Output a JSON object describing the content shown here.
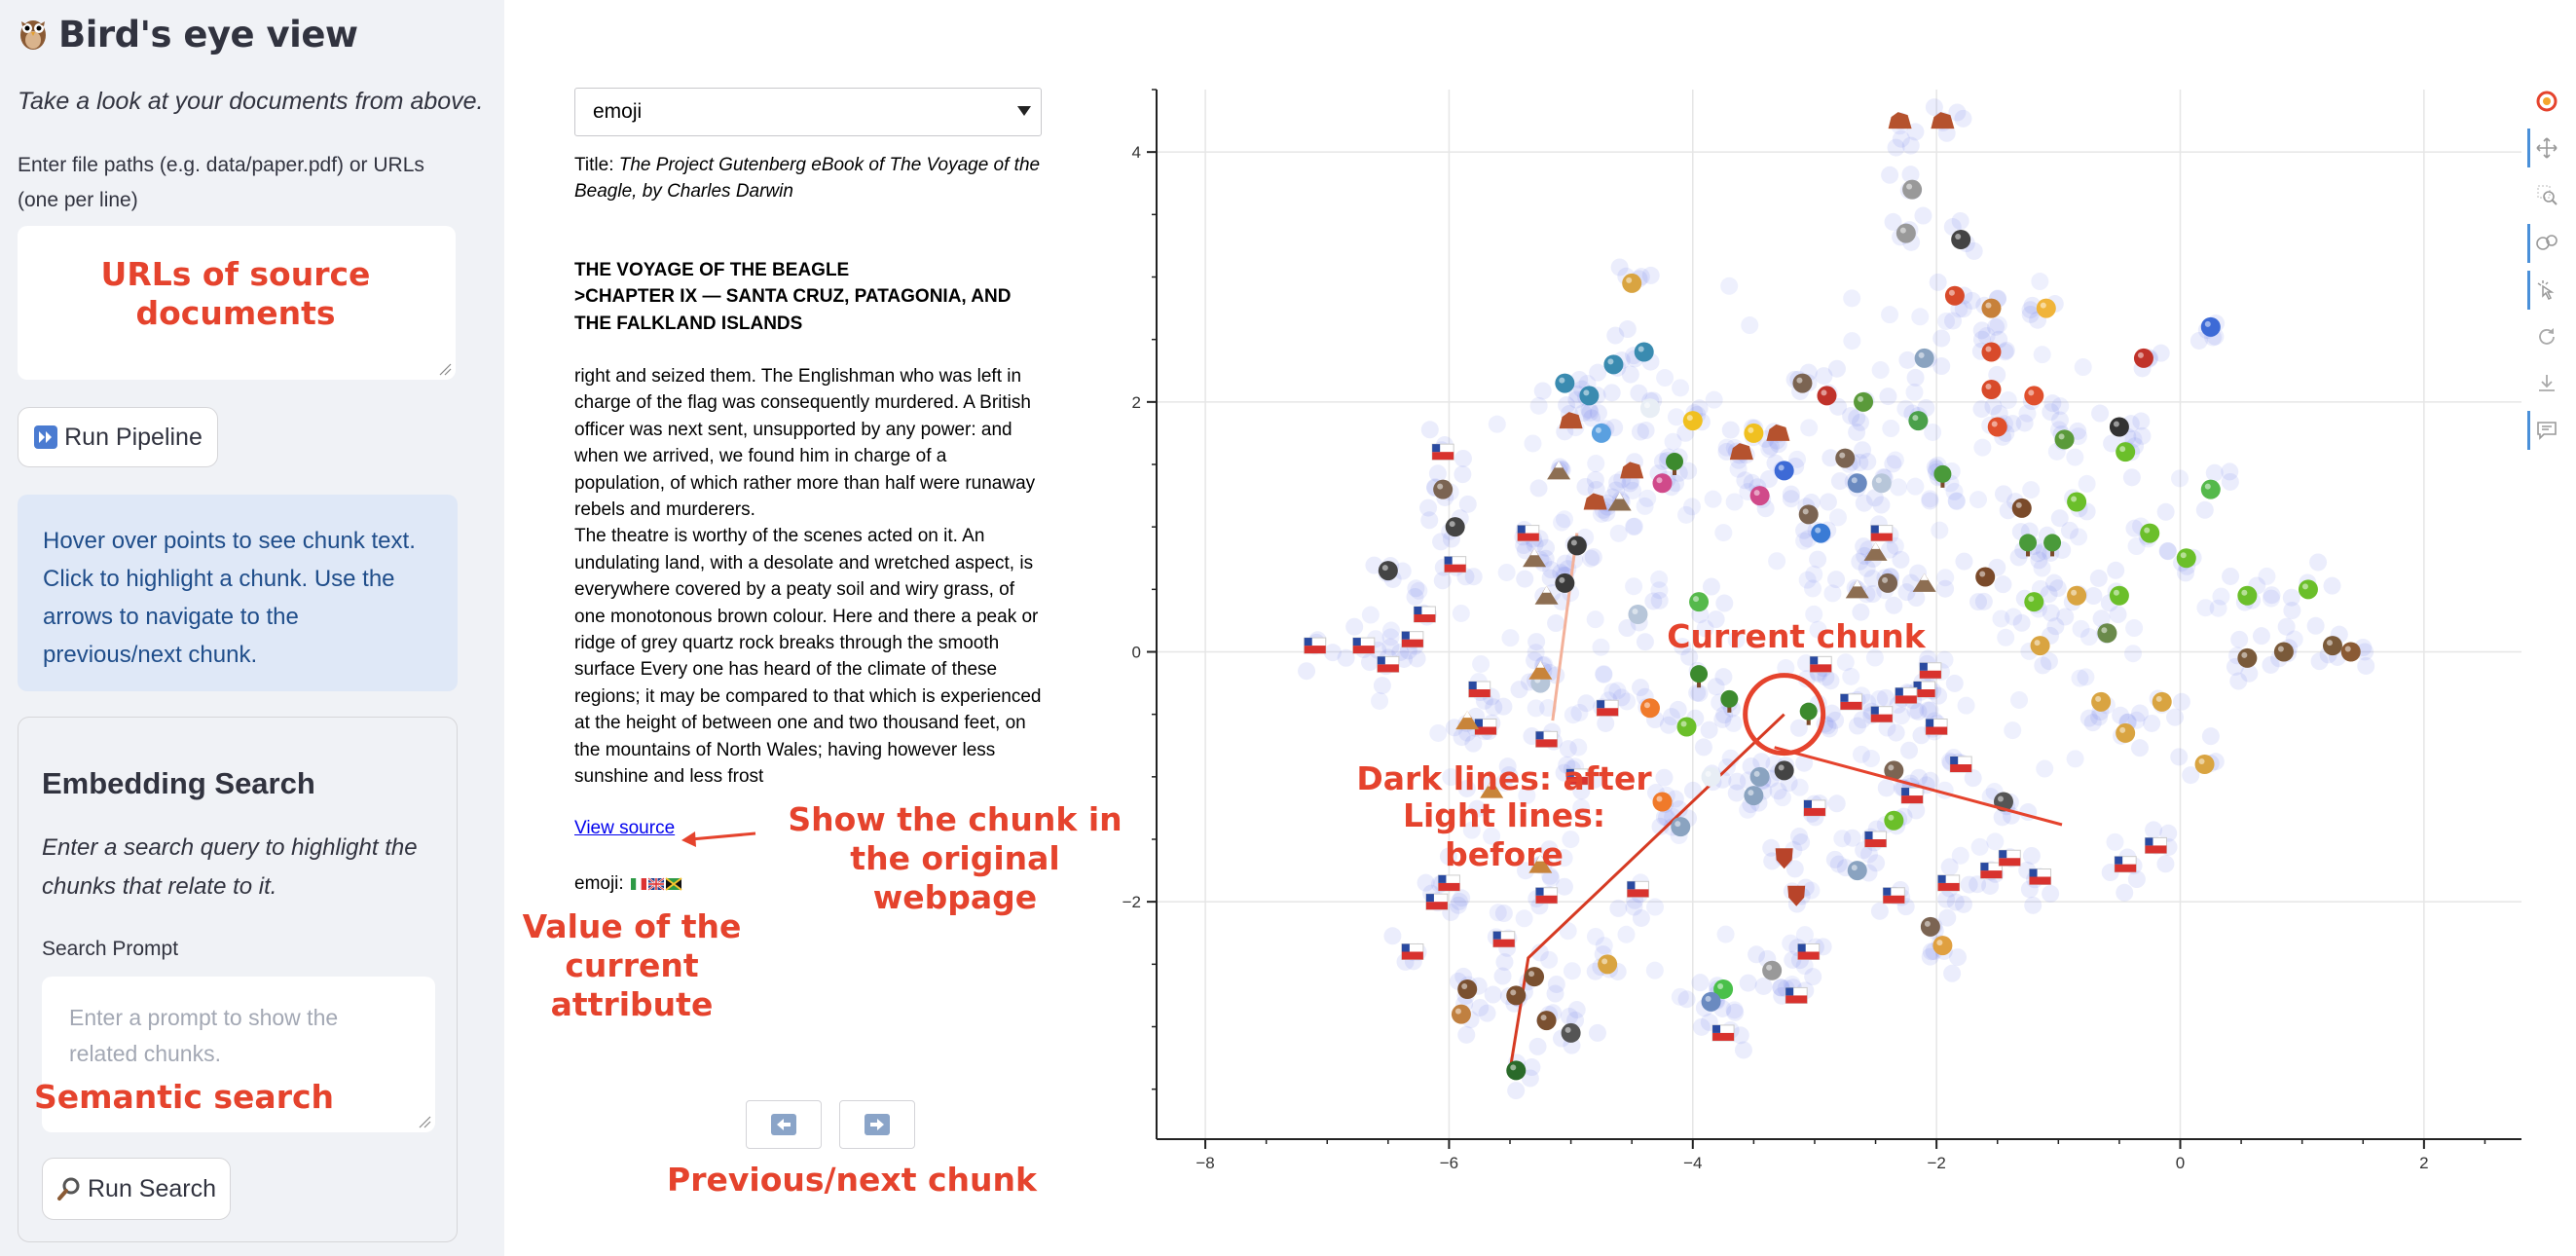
{
  "sidebar": {
    "title": "Bird's eye view",
    "tagline": "Take a look at your documents from above.",
    "file_paths_label": "Enter file paths (e.g. data/paper.pdf) or URLs (one per line)",
    "file_paths_value": "",
    "run_pipeline_label": "Run Pipeline",
    "info_text": "Hover over points to see chunk text. Click to highlight a chunk. Use the arrows to navigate to the previous/next chunk.",
    "embedding_search": {
      "heading": "Embedding Search",
      "description": "Enter a search query to highlight the chunks that relate to it.",
      "prompt_label": "Search Prompt",
      "prompt_placeholder": "Enter a prompt to show the related chunks.",
      "run_search_label": "Run Search"
    }
  },
  "chunk_panel": {
    "attribute_select": "emoji",
    "title_label": "Title:",
    "title_value": "The Project Gutenberg eBook of The Voyage of the Beagle, by Charles Darwin",
    "heading_lines": [
      "THE VOYAGE OF THE BEAGLE",
      ">CHAPTER IX — SANTA CRUZ, PATAGONIA, AND THE FALKLAND ISLANDS"
    ],
    "body_paragraphs": [
      "right and seized them. The Englishman who was left in charge of the flag was consequently murdered. A British officer was next sent, unsupported by any power: and when we arrived, we found him in charge of a population, of which rather more than half were runaway rebels and murderers.",
      "The theatre is worthy of the scenes acted on it. An undulating land, with a desolate and wretched aspect, is everywhere covered by a peaty soil and wiry grass, of one monotonous brown colour. Here and there a peak or ridge of grey quartz rock breaks through the smooth surface Every one has heard of the climate of these regions; it may be compared to that which is experienced at the height of between one and two thousand feet, on the mountains of North Wales; having however less sunshine and less frost"
    ],
    "view_source_label": "View source",
    "emoji_label": "emoji:"
  },
  "annotations": {
    "urls": "URLs of source documents",
    "show_chunk": "Show the chunk in the original webpage",
    "value_attr": "Value of the current attribute",
    "semantic_search": "Semantic search",
    "prev_next": "Previous/next chunk",
    "current_chunk": "Current chunk",
    "dark_lines": "Dark lines: after",
    "light_lines": "Light lines: before"
  },
  "colors": {
    "accent": "#e5432d",
    "point": "#5b6ee8",
    "info_bg": "#dfe8f7",
    "sidebar_bg": "#f0f2f6"
  },
  "chart_data": {
    "type": "scatter",
    "xlim": [
      -8.4,
      2.8
    ],
    "ylim": [
      -3.9,
      4.5
    ],
    "xticks": [
      -8,
      -6,
      -4,
      -2,
      0,
      2
    ],
    "yticks": [
      -2,
      0,
      2,
      4
    ],
    "grid": true,
    "current_chunk": {
      "x": -3.25,
      "y": -0.5
    },
    "after_path": [
      [
        -3.25,
        -0.5
      ],
      [
        -5.35,
        -2.45
      ],
      [
        -5.5,
        -3.35
      ]
    ],
    "before_path": [
      [
        -4.95,
        0.95
      ],
      [
        -5.15,
        -0.55
      ]
    ],
    "emoji_markers": [
      {
        "x": -3.95,
        "y": -0.2,
        "icon": "tree"
      },
      {
        "x": -3.7,
        "y": -0.4,
        "icon": "tree"
      },
      {
        "x": -3.05,
        "y": -0.5,
        "icon": "tree"
      },
      {
        "x": -4.15,
        "y": 1.5,
        "icon": "tree"
      },
      {
        "x": -2.95,
        "y": 0.95,
        "icon": "globe"
      },
      {
        "x": -1.95,
        "y": 1.4,
        "icon": "palm"
      },
      {
        "x": -1.25,
        "y": 0.85,
        "icon": "palm"
      },
      {
        "x": -1.05,
        "y": 0.85,
        "icon": "palm"
      },
      {
        "x": -0.45,
        "y": 1.6,
        "icon": "bird"
      },
      {
        "x": -0.25,
        "y": 0.95,
        "icon": "bird"
      },
      {
        "x": 0.05,
        "y": 0.75,
        "icon": "bird"
      },
      {
        "x": 0.55,
        "y": 0.45,
        "icon": "bird"
      },
      {
        "x": 1.05,
        "y": 0.5,
        "icon": "bird"
      },
      {
        "x": 0.25,
        "y": 1.3,
        "icon": "frog"
      },
      {
        "x": -3.95,
        "y": 0.4,
        "icon": "frog"
      },
      {
        "x": -4.8,
        "y": 1.2,
        "icon": "rock"
      },
      {
        "x": -4.5,
        "y": 1.45,
        "icon": "rock"
      },
      {
        "x": -3.6,
        "y": 1.6,
        "icon": "rock"
      },
      {
        "x": -3.3,
        "y": 1.75,
        "icon": "rock"
      },
      {
        "x": -5.0,
        "y": 1.85,
        "icon": "rock"
      },
      {
        "x": -2.3,
        "y": 4.25,
        "icon": "rock"
      },
      {
        "x": -5.1,
        "y": 1.45,
        "icon": "mountain"
      },
      {
        "x": -5.3,
        "y": 0.75,
        "icon": "mountain"
      },
      {
        "x": -5.2,
        "y": 0.45,
        "icon": "mountain"
      },
      {
        "x": -4.6,
        "y": 1.2,
        "icon": "mountain"
      },
      {
        "x": -2.65,
        "y": 0.5,
        "icon": "mountain"
      },
      {
        "x": -2.1,
        "y": 0.55,
        "icon": "mountain"
      },
      {
        "x": -2.5,
        "y": 0.8,
        "icon": "mountain"
      },
      {
        "x": -6.05,
        "y": 1.6,
        "icon": "flag"
      },
      {
        "x": -5.95,
        "y": 0.7,
        "icon": "flag"
      },
      {
        "x": -5.35,
        "y": 0.95,
        "icon": "flag"
      },
      {
        "x": -6.2,
        "y": 0.3,
        "icon": "flag"
      },
      {
        "x": -7.1,
        "y": 0.05,
        "icon": "flag"
      },
      {
        "x": -6.7,
        "y": 0.05,
        "icon": "flag"
      },
      {
        "x": -6.5,
        "y": -0.1,
        "icon": "flag"
      },
      {
        "x": -6.3,
        "y": 0.1,
        "icon": "flag"
      },
      {
        "x": -5.75,
        "y": -0.3,
        "icon": "flag"
      },
      {
        "x": -5.7,
        "y": -0.6,
        "icon": "flag"
      },
      {
        "x": -5.2,
        "y": -0.7,
        "icon": "flag"
      },
      {
        "x": -4.7,
        "y": -0.45,
        "icon": "flag"
      },
      {
        "x": -4.45,
        "y": -1.9,
        "icon": "flag"
      },
      {
        "x": -5.2,
        "y": -1.95,
        "icon": "flag"
      },
      {
        "x": -6.1,
        "y": -2.0,
        "icon": "flag"
      },
      {
        "x": -6.3,
        "y": -2.4,
        "icon": "flag"
      },
      {
        "x": -5.55,
        "y": -2.3,
        "icon": "flag"
      },
      {
        "x": -6.0,
        "y": -1.85,
        "icon": "flag"
      },
      {
        "x": -2.95,
        "y": -0.1,
        "icon": "flag"
      },
      {
        "x": -2.7,
        "y": -0.4,
        "icon": "flag"
      },
      {
        "x": -2.45,
        "y": -0.5,
        "icon": "flag"
      },
      {
        "x": -2.1,
        "y": -0.3,
        "icon": "flag"
      },
      {
        "x": -2.0,
        "y": -0.6,
        "icon": "flag"
      },
      {
        "x": -1.8,
        "y": -0.9,
        "icon": "flag"
      },
      {
        "x": -2.2,
        "y": -1.15,
        "icon": "flag"
      },
      {
        "x": -2.5,
        "y": -1.5,
        "icon": "flag"
      },
      {
        "x": -2.35,
        "y": -1.95,
        "icon": "flag"
      },
      {
        "x": -1.9,
        "y": -1.85,
        "icon": "flag"
      },
      {
        "x": -1.55,
        "y": -1.75,
        "icon": "flag"
      },
      {
        "x": -1.15,
        "y": -1.8,
        "icon": "flag"
      },
      {
        "x": -0.45,
        "y": -1.7,
        "icon": "flag"
      },
      {
        "x": -3.05,
        "y": -2.4,
        "icon": "flag"
      },
      {
        "x": -3.15,
        "y": -2.75,
        "icon": "flag"
      },
      {
        "x": -3.75,
        "y": -3.05,
        "icon": "flag"
      },
      {
        "x": -3.0,
        "y": -1.25,
        "icon": "flag"
      },
      {
        "x": -1.4,
        "y": -1.65,
        "icon": "flag"
      },
      {
        "x": -0.2,
        "y": -1.55,
        "icon": "flag"
      },
      {
        "x": -2.05,
        "y": -0.15,
        "icon": "flag"
      },
      {
        "x": -5.95,
        "y": 1.0,
        "icon": "penguin"
      },
      {
        "x": -6.5,
        "y": 0.65,
        "icon": "penguin"
      },
      {
        "x": -5.25,
        "y": -0.25,
        "icon": "cloud"
      },
      {
        "x": -4.95,
        "y": 0.85,
        "icon": "scarab"
      },
      {
        "x": -4.75,
        "y": 1.75,
        "icon": "wave"
      },
      {
        "x": -4.35,
        "y": 1.95,
        "icon": "snowman"
      },
      {
        "x": -4.4,
        "y": 2.4,
        "icon": "dino"
      },
      {
        "x": -4.65,
        "y": 2.3,
        "icon": "dino"
      },
      {
        "x": -4.85,
        "y": 2.05,
        "icon": "dino"
      },
      {
        "x": -5.05,
        "y": 2.15,
        "icon": "dino"
      },
      {
        "x": -4.5,
        "y": 2.95,
        "icon": "giraffe"
      },
      {
        "x": -3.25,
        "y": 1.45,
        "icon": "blue-dot"
      },
      {
        "x": -2.9,
        "y": 2.05,
        "icon": "ladybug"
      },
      {
        "x": -3.1,
        "y": 2.15,
        "icon": "animal"
      },
      {
        "x": -2.6,
        "y": 2.0,
        "icon": "virus"
      },
      {
        "x": -2.15,
        "y": 1.85,
        "icon": "leaf"
      },
      {
        "x": -2.1,
        "y": 2.35,
        "icon": "ship"
      },
      {
        "x": -1.55,
        "y": 2.75,
        "icon": "squirrel"
      },
      {
        "x": -1.85,
        "y": 2.85,
        "icon": "crayfish"
      },
      {
        "x": -1.55,
        "y": 2.4,
        "icon": "crayfish"
      },
      {
        "x": -1.55,
        "y": 2.1,
        "icon": "crayfish"
      },
      {
        "x": -1.5,
        "y": 1.8,
        "icon": "crab"
      },
      {
        "x": -1.2,
        "y": 2.05,
        "icon": "crab"
      },
      {
        "x": -1.1,
        "y": 2.75,
        "icon": "fish"
      },
      {
        "x": -0.3,
        "y": 2.35,
        "icon": "ladybug"
      },
      {
        "x": -0.5,
        "y": 1.8,
        "icon": "ant"
      },
      {
        "x": -0.95,
        "y": 1.7,
        "icon": "turtle"
      },
      {
        "x": -1.8,
        "y": 3.3,
        "icon": "bug"
      },
      {
        "x": -2.2,
        "y": 3.7,
        "icon": "mouse"
      },
      {
        "x": -2.25,
        "y": 3.35,
        "icon": "mouse"
      },
      {
        "x": -1.2,
        "y": 0.4,
        "icon": "bird"
      },
      {
        "x": -1.15,
        "y": 0.05,
        "icon": "giraffe"
      },
      {
        "x": -0.85,
        "y": 0.45,
        "icon": "giraffe"
      },
      {
        "x": -0.65,
        "y": -0.4,
        "icon": "giraffe"
      },
      {
        "x": -0.45,
        "y": -0.65,
        "icon": "giraffe"
      },
      {
        "x": -0.15,
        "y": -0.4,
        "icon": "giraffe"
      },
      {
        "x": 0.2,
        "y": -0.9,
        "icon": "giraffe"
      },
      {
        "x": 0.85,
        "y": 0.0,
        "icon": "hedgehog"
      },
      {
        "x": 1.25,
        "y": 0.05,
        "icon": "hedgehog"
      },
      {
        "x": 1.4,
        "y": 0.0,
        "icon": "owl"
      },
      {
        "x": 0.55,
        "y": -0.05,
        "icon": "hedgehog"
      },
      {
        "x": -1.6,
        "y": 0.6,
        "icon": "coconut"
      },
      {
        "x": -0.6,
        "y": 0.15,
        "icon": "lizard"
      },
      {
        "x": -2.35,
        "y": -1.35,
        "icon": "bird"
      },
      {
        "x": -1.45,
        "y": -1.2,
        "icon": "camera"
      },
      {
        "x": -3.45,
        "y": -1.0,
        "icon": "ship"
      },
      {
        "x": -4.95,
        "y": -1.0,
        "icon": "flag"
      },
      {
        "x": -4.25,
        "y": -1.2,
        "icon": "fire"
      },
      {
        "x": -4.1,
        "y": -1.4,
        "icon": "ship"
      },
      {
        "x": -3.25,
        "y": -1.65,
        "icon": "shield"
      },
      {
        "x": -2.65,
        "y": -1.75,
        "icon": "ship"
      },
      {
        "x": -3.15,
        "y": -1.95,
        "icon": "shield"
      },
      {
        "x": -3.75,
        "y": -2.7,
        "icon": "gun"
      },
      {
        "x": -3.35,
        "y": -2.55,
        "icon": "mouse"
      },
      {
        "x": -1.95,
        "y": -2.35,
        "icon": "person"
      },
      {
        "x": -2.05,
        "y": -2.2,
        "icon": "animal"
      },
      {
        "x": -5.25,
        "y": -1.7,
        "icon": "tent"
      },
      {
        "x": -4.7,
        "y": -2.5,
        "icon": "giraffe"
      },
      {
        "x": -5.65,
        "y": -1.1,
        "icon": "tent"
      },
      {
        "x": -5.85,
        "y": -0.55,
        "icon": "tent"
      },
      {
        "x": -5.45,
        "y": -2.75,
        "icon": "horse"
      },
      {
        "x": -5.3,
        "y": -2.6,
        "icon": "horse"
      },
      {
        "x": -5.2,
        "y": -2.95,
        "icon": "horse"
      },
      {
        "x": -5.85,
        "y": -2.7,
        "icon": "horse"
      },
      {
        "x": -5.9,
        "y": -2.9,
        "icon": "cowboy"
      },
      {
        "x": -5.0,
        "y": -3.05,
        "icon": "zebra"
      },
      {
        "x": -5.45,
        "y": -3.35,
        "icon": "circle-target"
      },
      {
        "x": -3.85,
        "y": -2.8,
        "icon": "bag"
      },
      {
        "x": -6.05,
        "y": 1.3,
        "icon": "animal"
      },
      {
        "x": -5.25,
        "y": -0.15,
        "icon": "tent"
      },
      {
        "x": -4.45,
        "y": 0.3,
        "icon": "cloud"
      },
      {
        "x": -4.35,
        "y": -0.45,
        "icon": "fire"
      },
      {
        "x": -4.05,
        "y": -0.6,
        "icon": "bird"
      },
      {
        "x": -3.85,
        "y": -1.0,
        "icon": "snowman"
      },
      {
        "x": -3.5,
        "y": -1.15,
        "icon": "ship"
      },
      {
        "x": -3.25,
        "y": -0.95,
        "icon": "penguin"
      },
      {
        "x": -5.05,
        "y": 0.55,
        "icon": "scarab"
      },
      {
        "x": -2.25,
        "y": -0.35,
        "icon": "flag"
      },
      {
        "x": -2.45,
        "y": 1.35,
        "icon": "cloud"
      },
      {
        "x": -3.05,
        "y": 1.1,
        "icon": "animal"
      },
      {
        "x": -2.4,
        "y": 0.55,
        "icon": "animal"
      },
      {
        "x": -2.35,
        "y": -0.95,
        "icon": "animal"
      },
      {
        "x": -3.45,
        "y": 1.25,
        "icon": "flower"
      },
      {
        "x": -3.5,
        "y": 1.75,
        "icon": "lightning"
      },
      {
        "x": -4.0,
        "y": 1.85,
        "icon": "lightning"
      },
      {
        "x": -1.95,
        "y": 4.25,
        "icon": "rock"
      },
      {
        "x": -2.65,
        "y": 1.35,
        "icon": "book"
      },
      {
        "x": -2.75,
        "y": 1.55,
        "icon": "animal"
      },
      {
        "x": -2.45,
        "y": 0.95,
        "icon": "flag"
      },
      {
        "x": -4.25,
        "y": 1.35,
        "icon": "flower"
      },
      {
        "x": -1.3,
        "y": 1.15,
        "icon": "coconut"
      },
      {
        "x": 0.25,
        "y": 2.6,
        "icon": "blue-dot"
      },
      {
        "x": -0.5,
        "y": 0.45,
        "icon": "bird"
      },
      {
        "x": -0.85,
        "y": 1.2,
        "icon": "bird"
      }
    ]
  }
}
